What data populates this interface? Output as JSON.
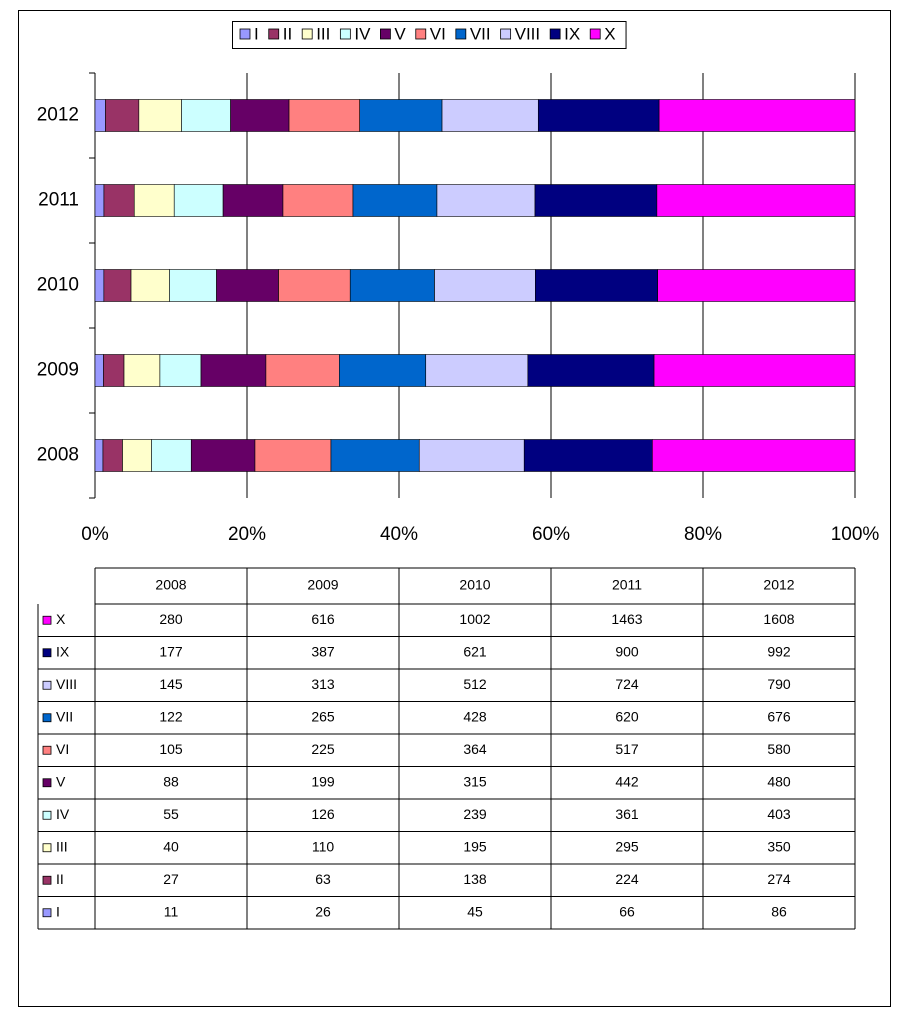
{
  "chart_data": {
    "type": "bar",
    "orientation": "horizontal",
    "stacked": "percent",
    "categories": [
      "2008",
      "2009",
      "2010",
      "2011",
      "2012"
    ],
    "series": [
      {
        "name": "I",
        "color": "#9999ff",
        "values": [
          11,
          26,
          45,
          66,
          86
        ]
      },
      {
        "name": "II",
        "color": "#993366",
        "values": [
          27,
          63,
          138,
          224,
          274
        ]
      },
      {
        "name": "III",
        "color": "#ffffcc",
        "values": [
          40,
          110,
          195,
          295,
          350
        ]
      },
      {
        "name": "IV",
        "color": "#ccffff",
        "values": [
          55,
          126,
          239,
          361,
          403
        ]
      },
      {
        "name": "V",
        "color": "#660066",
        "values": [
          88,
          199,
          315,
          442,
          480
        ]
      },
      {
        "name": "VI",
        "color": "#ff8080",
        "values": [
          105,
          225,
          364,
          517,
          580
        ]
      },
      {
        "name": "VII",
        "color": "#0066cc",
        "values": [
          122,
          265,
          428,
          620,
          676
        ]
      },
      {
        "name": "VIII",
        "color": "#ccccff",
        "values": [
          145,
          313,
          512,
          724,
          790
        ]
      },
      {
        "name": "IX",
        "color": "#000080",
        "values": [
          177,
          387,
          621,
          900,
          992
        ]
      },
      {
        "name": "X",
        "color": "#ff00ff",
        "values": [
          280,
          616,
          1002,
          1463,
          1608
        ]
      }
    ],
    "xlim": [
      0,
      100
    ],
    "xticks": [
      {
        "value": 0,
        "label": "0%"
      },
      {
        "value": 20,
        "label": "20%"
      },
      {
        "value": 40,
        "label": "40%"
      },
      {
        "value": 60,
        "label": "60%"
      },
      {
        "value": 80,
        "label": "80%"
      },
      {
        "value": 100,
        "label": "100%"
      }
    ],
    "grid": true,
    "legend": "top",
    "data_table": true
  }
}
